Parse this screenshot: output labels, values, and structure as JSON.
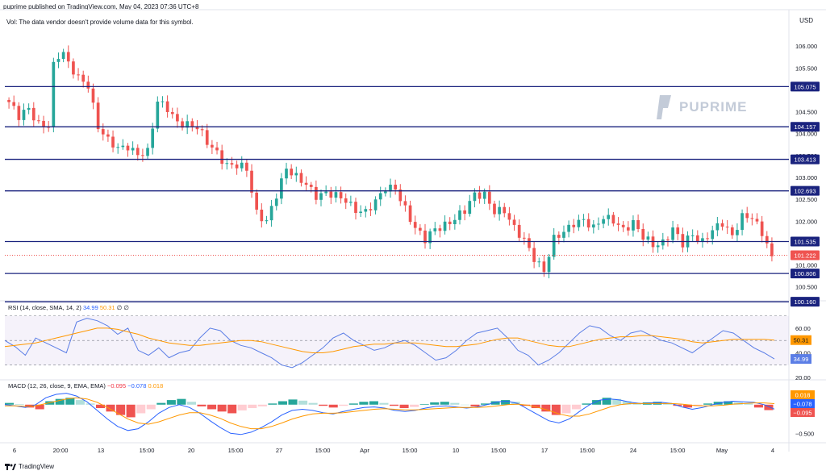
{
  "header": {
    "published": "puprime published on TradingView.com, May 04, 2023 07:36 UTC+8",
    "vol_note": "Vol: The data vendor doesn't provide volume data for this symbol.",
    "currency": "USD",
    "brand": "PUPRIME",
    "footer": "TradingView"
  },
  "rsi_label": {
    "name": "RSI (14, close, SMA, 14, 2)",
    "value": "34.99",
    "sma": "50.31",
    "z1": "∅",
    "z2": "∅"
  },
  "macd_label": {
    "name": "MACD (12, 26, close, 9, EMA, EMA)",
    "hist": "−0.095",
    "macd": "−0.078",
    "signal": "0.018"
  },
  "colors": {
    "up": "#26a69a",
    "down": "#ef5350",
    "level_line": "#1a237e",
    "rsi": "#5b7ee6",
    "rsi_ma": "#ff9800",
    "macd": "#2962ff",
    "signal": "#ff9800"
  },
  "chart_data": [
    {
      "type": "candlestick",
      "title": "",
      "y_axis_ticks": [
        "106.000",
        "105.500",
        "104.500",
        "104.000",
        "103.500",
        "103.000",
        "102.500",
        "102.000",
        "101.000",
        "100.500"
      ],
      "x_axis_ticks": [
        "6",
        "20:00",
        "13",
        "15:00",
        "20",
        "15:00",
        "27",
        "15:00",
        "Apr",
        "15:00",
        "10",
        "15:00",
        "17",
        "15:00",
        "24",
        "15:00",
        "May",
        "4"
      ],
      "ylim": [
        100.2,
        106.5
      ],
      "horizontal_levels": [
        105.075,
        104.157,
        103.413,
        102.693,
        101.535,
        100.806,
        100.16
      ],
      "horizontal_level_labels": [
        "105.075",
        "104.157",
        "103.413",
        "102.693",
        "101.535",
        "100.806",
        "100.160"
      ],
      "last_price": 101.222,
      "last_price_label": "101.222",
      "close_path": [
        [
          0,
          104.72
        ],
        [
          2,
          104.35
        ],
        [
          4,
          104.55
        ],
        [
          6,
          104.25
        ],
        [
          8,
          104.22
        ],
        [
          9,
          105.55
        ],
        [
          10,
          105.75
        ],
        [
          11,
          105.8
        ],
        [
          12,
          105.55
        ],
        [
          14,
          105.3
        ],
        [
          16,
          105.15
        ],
        [
          18,
          104.15
        ],
        [
          20,
          103.8
        ],
        [
          22,
          103.65
        ],
        [
          24,
          103.75
        ],
        [
          26,
          103.55
        ],
        [
          28,
          103.55
        ],
        [
          30,
          104.7
        ],
        [
          32,
          104.6
        ],
        [
          34,
          104.3
        ],
        [
          36,
          104.2
        ],
        [
          38,
          104.1
        ],
        [
          40,
          103.8
        ],
        [
          42,
          103.6
        ],
        [
          44,
          103.3
        ],
        [
          46,
          103.25
        ],
        [
          48,
          103.15
        ],
        [
          50,
          102.2
        ],
        [
          52,
          102.05
        ],
        [
          54,
          102.6
        ],
        [
          56,
          103.15
        ],
        [
          58,
          103.0
        ],
        [
          60,
          102.9
        ],
        [
          62,
          102.6
        ],
        [
          64,
          102.6
        ],
        [
          66,
          102.55
        ],
        [
          68,
          102.5
        ],
        [
          70,
          102.3
        ],
        [
          72,
          102.2
        ],
        [
          74,
          102.4
        ],
        [
          76,
          102.75
        ],
        [
          78,
          102.8
        ],
        [
          80,
          102.3
        ],
        [
          82,
          101.8
        ],
        [
          84,
          101.55
        ],
        [
          86,
          101.85
        ],
        [
          88,
          101.95
        ],
        [
          90,
          102.05
        ],
        [
          92,
          102.2
        ],
        [
          94,
          102.6
        ],
        [
          96,
          102.65
        ],
        [
          98,
          102.25
        ],
        [
          100,
          102.2
        ],
        [
          102,
          101.8
        ],
        [
          104,
          101.6
        ],
        [
          106,
          101.2
        ],
        [
          108,
          100.85
        ],
        [
          110,
          101.55
        ],
        [
          112,
          101.75
        ],
        [
          114,
          102.0
        ],
        [
          116,
          102.05
        ],
        [
          118,
          101.8
        ],
        [
          120,
          102.05
        ],
        [
          122,
          102.05
        ],
        [
          124,
          101.85
        ],
        [
          126,
          101.95
        ],
        [
          128,
          101.6
        ],
        [
          130,
          101.45
        ],
        [
          132,
          101.55
        ],
        [
          134,
          101.85
        ],
        [
          136,
          101.45
        ],
        [
          138,
          101.65
        ],
        [
          140,
          101.55
        ],
        [
          142,
          101.85
        ],
        [
          144,
          101.95
        ],
        [
          146,
          101.6
        ],
        [
          148,
          102.1
        ],
        [
          150,
          102.15
        ],
        [
          152,
          101.75
        ],
        [
          154,
          101.2
        ]
      ]
    },
    {
      "type": "line",
      "title": "RSI (14, close, SMA, 14, 2)",
      "y_axis_ticks": [
        "60.00",
        "40.00",
        "20.00"
      ],
      "band": [
        30,
        70
      ],
      "ylim": [
        20,
        75
      ],
      "series": [
        {
          "name": "RSI",
          "values": [
            50,
            45,
            38,
            52,
            48,
            44,
            40,
            65,
            68,
            66,
            62,
            55,
            60,
            42,
            38,
            44,
            36,
            40,
            42,
            52,
            60,
            58,
            50,
            46,
            44,
            40,
            36,
            30,
            28,
            32,
            38,
            44,
            52,
            56,
            50,
            46,
            42,
            44,
            48,
            50,
            46,
            40,
            34,
            36,
            42,
            50,
            56,
            58,
            60,
            52,
            42,
            38,
            30,
            34,
            40,
            48,
            56,
            62,
            60,
            54,
            50,
            56,
            58,
            54,
            50,
            48,
            44,
            40,
            46,
            52,
            58,
            56,
            50,
            44,
            40,
            35
          ]
        },
        {
          "name": "SMA",
          "values": [
            45,
            46,
            47,
            48,
            50,
            52,
            54,
            56,
            58,
            60,
            60,
            59,
            57,
            55,
            52,
            50,
            48,
            47,
            46,
            46,
            47,
            48,
            49,
            50,
            50,
            49,
            47,
            45,
            43,
            41,
            40,
            40,
            41,
            43,
            45,
            46,
            47,
            47,
            48,
            48,
            48,
            47,
            46,
            45,
            45,
            46,
            47,
            49,
            51,
            52,
            52,
            50,
            48,
            46,
            45,
            45,
            47,
            49,
            51,
            52,
            53,
            53,
            54,
            54,
            53,
            52,
            51,
            49,
            48,
            49,
            50,
            51,
            51,
            51,
            51,
            50.31
          ]
        }
      ]
    },
    {
      "type": "bar+line",
      "title": "MACD (12, 26, close, 9, EMA, EMA)",
      "y_axis_ticks": [
        "−0.500"
      ],
      "ylim": [
        -0.65,
        0.25
      ],
      "series": [
        {
          "name": "Histogram",
          "values": [
            0.03,
            0.01,
            -0.05,
            -0.08,
            0.06,
            0.1,
            0.12,
            0.08,
            0.02,
            -0.06,
            -0.12,
            -0.18,
            -0.22,
            -0.15,
            -0.08,
            0.03,
            0.08,
            0.1,
            0.05,
            -0.03,
            -0.08,
            -0.12,
            -0.15,
            -0.1,
            -0.06,
            -0.03,
            0.02,
            0.06,
            0.09,
            0.07,
            0.03,
            -0.02,
            -0.05,
            -0.02,
            0.02,
            0.05,
            0.06,
            0.03,
            -0.02,
            -0.06,
            -0.04,
            0.01,
            0.04,
            0.05,
            0.03,
            0.0,
            -0.03,
            0.02,
            0.06,
            0.08,
            0.05,
            -0.02,
            -0.06,
            -0.12,
            -0.18,
            -0.15,
            -0.08,
            0.02,
            0.08,
            0.12,
            0.1,
            0.06,
            0.03,
            0.04,
            0.05,
            0.03,
            -0.02,
            -0.05,
            -0.03,
            0.02,
            0.05,
            0.06,
            0.04,
            0.02,
            -0.05,
            -0.095
          ]
        },
        {
          "name": "MACD",
          "values": [
            0.0,
            -0.02,
            -0.05,
            0.0,
            0.12,
            0.18,
            0.2,
            0.15,
            0.05,
            -0.1,
            -0.25,
            -0.38,
            -0.45,
            -0.42,
            -0.3,
            -0.15,
            -0.05,
            0.0,
            -0.05,
            -0.15,
            -0.28,
            -0.4,
            -0.5,
            -0.52,
            -0.48,
            -0.4,
            -0.3,
            -0.18,
            -0.1,
            -0.08,
            -0.1,
            -0.14,
            -0.16,
            -0.12,
            -0.08,
            -0.05,
            -0.04,
            -0.06,
            -0.1,
            -0.12,
            -0.1,
            -0.06,
            -0.03,
            -0.02,
            -0.04,
            -0.06,
            -0.04,
            0.0,
            0.05,
            0.06,
            0.02,
            -0.08,
            -0.18,
            -0.28,
            -0.32,
            -0.25,
            -0.12,
            0.0,
            0.08,
            0.1,
            0.08,
            0.04,
            0.02,
            0.03,
            0.04,
            0.02,
            -0.04,
            -0.08,
            -0.05,
            0.0,
            0.04,
            0.06,
            0.05,
            0.04,
            0.0,
            -0.078
          ]
        },
        {
          "name": "Signal",
          "values": [
            -0.02,
            -0.02,
            -0.03,
            -0.02,
            0.02,
            0.06,
            0.1,
            0.12,
            0.1,
            0.04,
            -0.05,
            -0.15,
            -0.25,
            -0.32,
            -0.34,
            -0.3,
            -0.24,
            -0.18,
            -0.14,
            -0.14,
            -0.18,
            -0.24,
            -0.32,
            -0.38,
            -0.42,
            -0.42,
            -0.38,
            -0.32,
            -0.25,
            -0.2,
            -0.16,
            -0.15,
            -0.15,
            -0.14,
            -0.12,
            -0.1,
            -0.08,
            -0.07,
            -0.08,
            -0.09,
            -0.09,
            -0.08,
            -0.07,
            -0.06,
            -0.05,
            -0.05,
            -0.05,
            -0.04,
            -0.02,
            0.0,
            0.01,
            -0.01,
            -0.05,
            -0.1,
            -0.16,
            -0.2,
            -0.2,
            -0.16,
            -0.1,
            -0.04,
            0.0,
            0.02,
            0.02,
            0.02,
            0.02,
            0.02,
            0.01,
            -0.01,
            -0.02,
            -0.02,
            -0.01,
            0.01,
            0.02,
            0.03,
            0.03,
            0.018
          ]
        }
      ],
      "value_labels": [
        "0.018",
        "−0.078",
        "−0.095"
      ]
    }
  ]
}
